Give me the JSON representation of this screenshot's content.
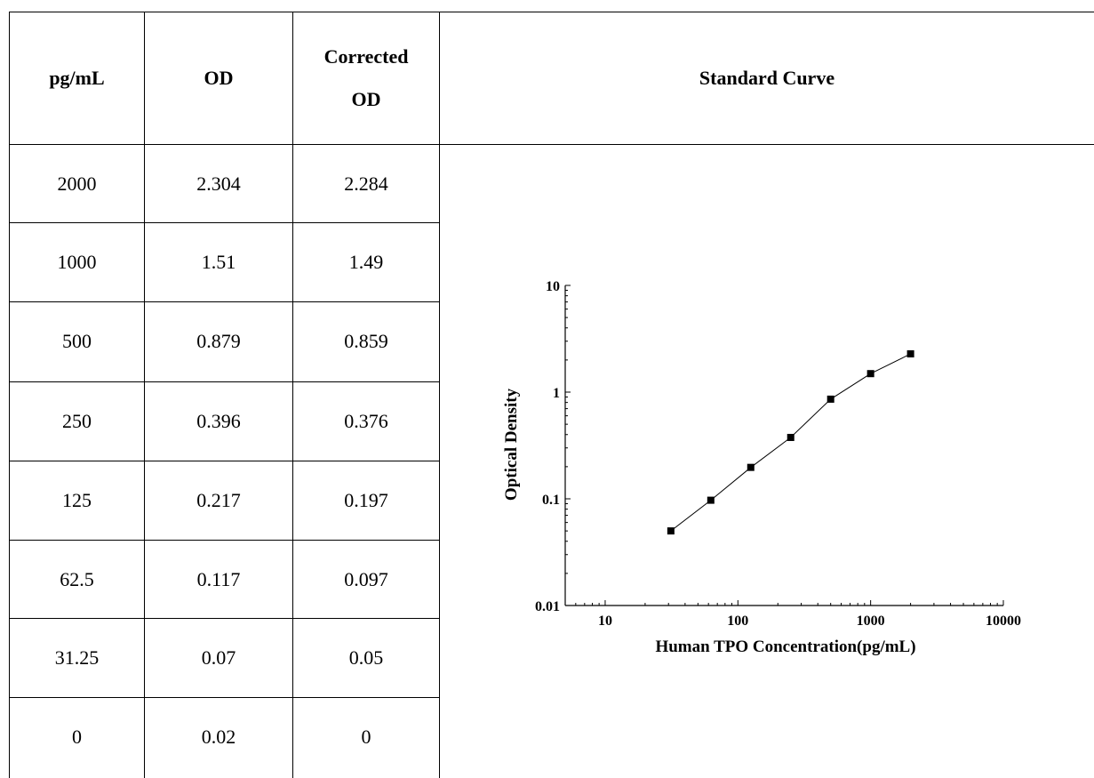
{
  "table": {
    "headers": {
      "pgml": "pg/mL",
      "od": "OD",
      "corrected_line1": "Corrected",
      "corrected_line2": "OD",
      "curve": "Standard Curve"
    },
    "rows": [
      {
        "pgml": "2000",
        "od": "2.304",
        "corrected": "2.284"
      },
      {
        "pgml": "1000",
        "od": "1.51",
        "corrected": "1.49"
      },
      {
        "pgml": "500",
        "od": "0.879",
        "corrected": "0.859"
      },
      {
        "pgml": "250",
        "od": "0.396",
        "corrected": "0.376"
      },
      {
        "pgml": "125",
        "od": "0.217",
        "corrected": "0.197"
      },
      {
        "pgml": "62.5",
        "od": "0.117",
        "corrected": "0.097"
      },
      {
        "pgml": "31.25",
        "od": "0.07",
        "corrected": "0.05"
      },
      {
        "pgml": "0",
        "od": "0.02",
        "corrected": "0"
      }
    ]
  },
  "chart_data": {
    "type": "scatter",
    "title": "",
    "xlabel": "Human TPO Concentration(pg/mL)",
    "ylabel": "Optical Density",
    "xscale": "log",
    "yscale": "log",
    "xlim": [
      5,
      10000
    ],
    "ylim": [
      0.01,
      10
    ],
    "xticks": [
      10,
      100,
      1000,
      10000
    ],
    "xtick_labels": [
      "10",
      "100",
      "1000",
      "10000"
    ],
    "yticks": [
      0.01,
      0.1,
      1,
      10
    ],
    "ytick_labels": [
      "0.01",
      "0.1",
      "1",
      "10"
    ],
    "grid": false,
    "connected": true,
    "marker": "square",
    "x": [
      31.25,
      62.5,
      125,
      250,
      500,
      1000,
      2000
    ],
    "y": [
      0.05,
      0.097,
      0.197,
      0.376,
      0.859,
      1.49,
      2.284
    ]
  }
}
